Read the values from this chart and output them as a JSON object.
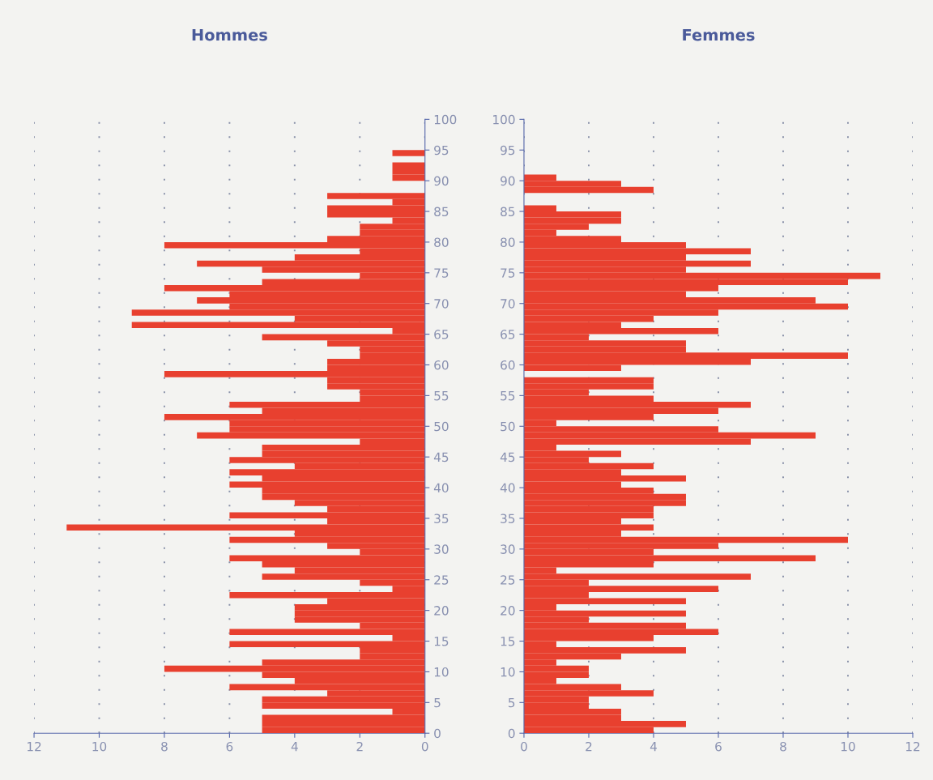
{
  "chart_data": [
    {
      "type": "histogram",
      "orientation": "horizontal",
      "title": "Hommes",
      "color": "#e8402f",
      "grid": "x",
      "bins": [
        0,
        1,
        2,
        3,
        4,
        5,
        6,
        7,
        8,
        9,
        10,
        11,
        12,
        13,
        14,
        15,
        16,
        17,
        18,
        19,
        20,
        21,
        22,
        23,
        24,
        25,
        26,
        27,
        28,
        29,
        30,
        31,
        32,
        33,
        34,
        35,
        36,
        37,
        38,
        39,
        40,
        41,
        42,
        43,
        44,
        45,
        46,
        47,
        48,
        49,
        50,
        51,
        52,
        53,
        54,
        55,
        56,
        57,
        58,
        59,
        60,
        61,
        62,
        63,
        64,
        65,
        66,
        67,
        68,
        69,
        70,
        71,
        72,
        73,
        74,
        75,
        76,
        77,
        78,
        79,
        80,
        81,
        82,
        83,
        84,
        85,
        86,
        87,
        88,
        89,
        90,
        91,
        92,
        93,
        94,
        95
      ],
      "values": [
        5,
        5,
        5,
        1,
        5,
        5,
        3,
        6,
        4,
        5,
        8,
        5,
        2,
        2,
        6,
        1,
        6,
        2,
        4,
        4,
        4,
        3,
        6,
        1,
        2,
        5,
        4,
        5,
        6,
        2,
        3,
        6,
        4,
        11,
        3,
        6,
        3,
        4,
        5,
        5,
        6,
        5,
        6,
        4,
        6,
        5,
        5,
        2,
        7,
        6,
        6,
        8,
        5,
        6,
        2,
        2,
        3,
        3,
        8,
        3,
        3,
        2,
        2,
        3,
        5,
        1,
        9,
        4,
        9,
        6,
        7,
        6,
        8,
        5,
        2,
        5,
        7,
        4,
        2,
        8,
        3,
        2,
        2,
        1,
        3,
        3,
        1,
        3,
        0,
        0,
        1,
        1,
        1,
        0,
        1
      ],
      "xlim": [
        12,
        0
      ],
      "xticks": [
        12,
        10,
        8,
        6,
        4,
        2,
        0
      ],
      "ylim": [
        0,
        100
      ],
      "yticks": [
        0,
        5,
        10,
        15,
        20,
        25,
        30,
        35,
        40,
        45,
        50,
        55,
        60,
        65,
        70,
        75,
        80,
        85,
        90,
        95,
        100
      ]
    },
    {
      "type": "histogram",
      "orientation": "horizontal",
      "title": "Femmes",
      "color": "#e8402f",
      "grid": "x",
      "bins": [
        0,
        1,
        2,
        3,
        4,
        5,
        6,
        7,
        8,
        9,
        10,
        11,
        12,
        13,
        14,
        15,
        16,
        17,
        18,
        19,
        20,
        21,
        22,
        23,
        24,
        25,
        26,
        27,
        28,
        29,
        30,
        31,
        32,
        33,
        34,
        35,
        36,
        37,
        38,
        39,
        40,
        41,
        42,
        43,
        44,
        45,
        46,
        47,
        48,
        49,
        50,
        51,
        52,
        53,
        54,
        55,
        56,
        57,
        58,
        59,
        60,
        61,
        62,
        63,
        64,
        65,
        66,
        67,
        68,
        69,
        70,
        71,
        72,
        73,
        74,
        75,
        76,
        77,
        78,
        79,
        80,
        81,
        82,
        83,
        84,
        85,
        86,
        87,
        88,
        89,
        90,
        91
      ],
      "values": [
        4,
        5,
        3,
        3,
        2,
        2,
        4,
        3,
        1,
        2,
        2,
        1,
        3,
        5,
        1,
        4,
        6,
        5,
        2,
        5,
        1,
        5,
        2,
        6,
        2,
        7,
        1,
        4,
        9,
        4,
        6,
        10,
        3,
        4,
        3,
        4,
        4,
        5,
        5,
        4,
        3,
        5,
        3,
        4,
        2,
        3,
        1,
        7,
        9,
        6,
        1,
        4,
        6,
        7,
        4,
        2,
        4,
        4,
        0,
        3,
        7,
        10,
        5,
        5,
        2,
        6,
        3,
        4,
        6,
        10,
        9,
        5,
        6,
        10,
        11,
        5,
        7,
        5,
        7,
        5,
        3,
        1,
        2,
        3,
        3,
        1,
        0,
        0,
        4,
        3,
        1
      ],
      "xlim": [
        0,
        12
      ],
      "xticks": [
        0,
        2,
        4,
        6,
        8,
        10,
        12
      ],
      "ylim": [
        0,
        100
      ],
      "yticks": [
        0,
        5,
        10,
        15,
        20,
        25,
        30,
        35,
        40,
        45,
        50,
        55,
        60,
        65,
        70,
        75,
        80,
        85,
        90,
        95,
        100
      ]
    }
  ]
}
